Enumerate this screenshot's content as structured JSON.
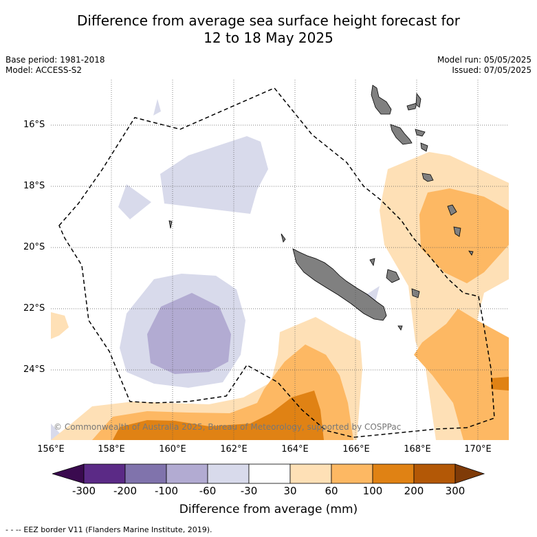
{
  "title_line1": "Difference from average sea surface height forecast for",
  "title_line2": "12 to 18 May 2025",
  "meta_left": {
    "base_period": "Base period: 1981-2018",
    "model": "Model: ACCESS-S2"
  },
  "meta_right": {
    "model_run": "Model run: 05/05/2025",
    "issued": "Issued: 07/05/2025"
  },
  "lat_labels": [
    "16°S",
    "18°S",
    "20°S",
    "22°S",
    "24°S"
  ],
  "lon_labels": [
    "156°E",
    "158°E",
    "160°E",
    "162°E",
    "164°E",
    "166°E",
    "168°E",
    "170°E"
  ],
  "copyright": "© Commonwealth of Australia 2025, Bureau of Meteorology, supported by COSPPac",
  "colorbar": {
    "ticks": [
      "-300",
      "-200",
      "-100",
      "-60",
      "-30",
      "30",
      "60",
      "100",
      "200",
      "300"
    ],
    "colors": [
      "#3a0a4f",
      "#5b2a86",
      "#8073ac",
      "#b2abd2",
      "#d8daeb",
      "#ffffff",
      "#fee0b6",
      "#fdb863",
      "#e08214",
      "#b35806",
      "#7f3b08"
    ],
    "label": "Difference from average (mm)"
  },
  "footer": "- -  -- EEZ border V11 (Flanders Marine Institute, 2019).",
  "map_colors": {
    "neg30_60": "#d8daeb",
    "neg60_100": "#b2abd2",
    "pos30_60": "#fee0b6",
    "pos60_100": "#fdb863",
    "pos100_200": "#e08214",
    "land": "#808080"
  }
}
